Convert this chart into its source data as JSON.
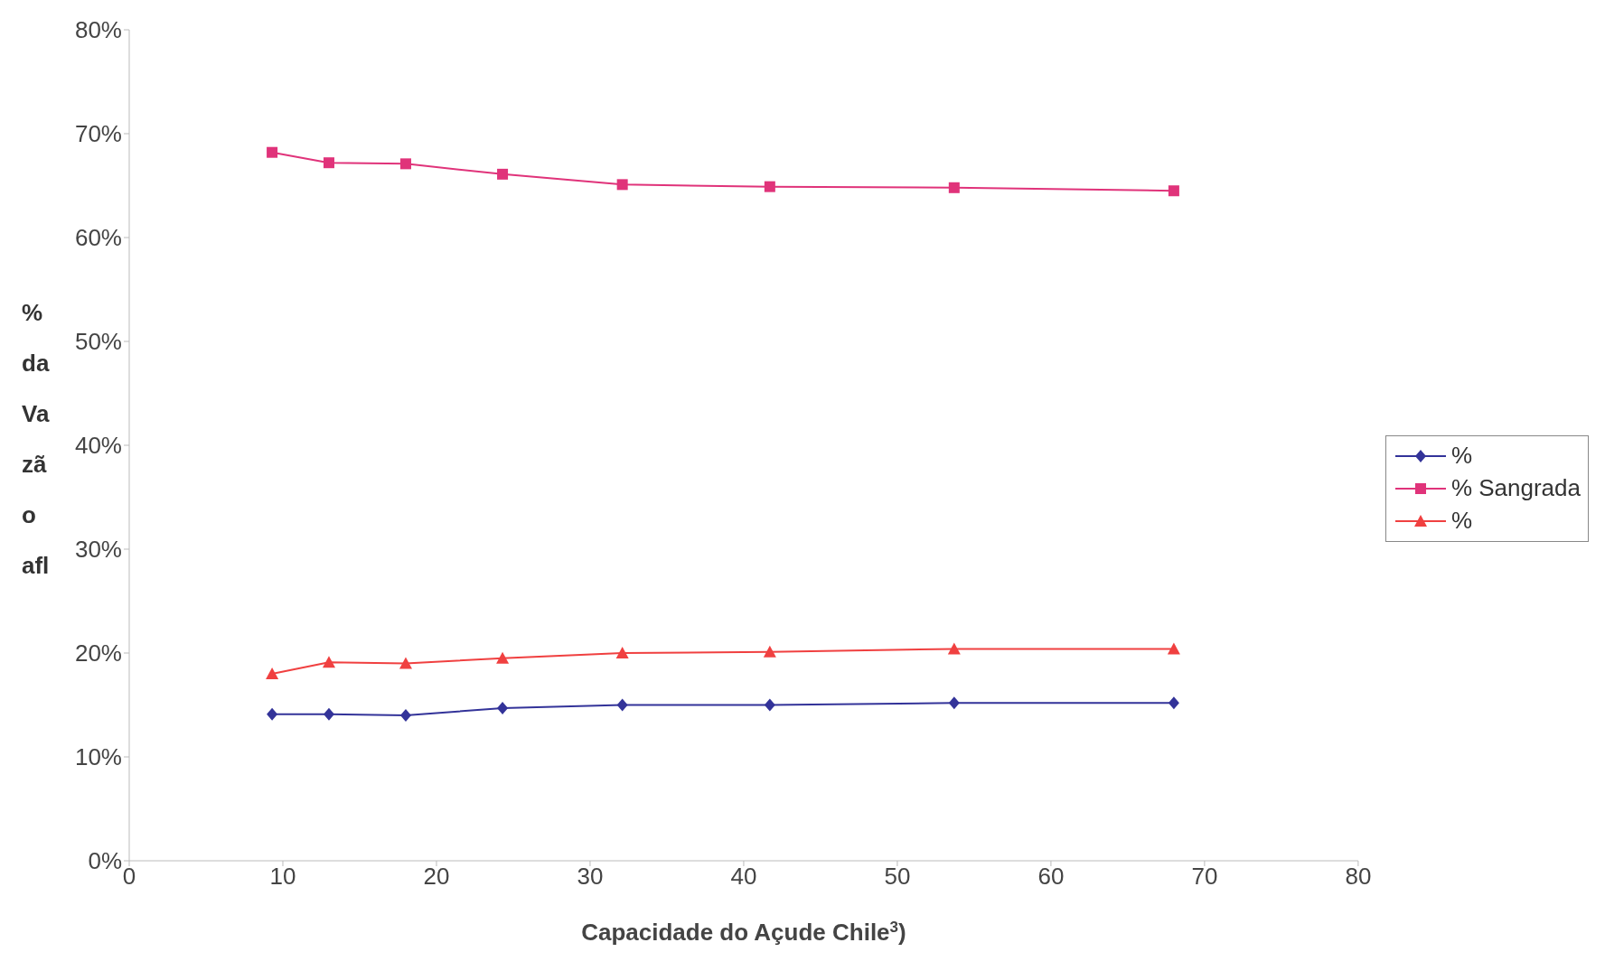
{
  "chart_data": {
    "type": "line",
    "xlabel": "Capacidade do Açude Chile$^{3}$)",
    "ylabel": "% da Va zã o afl",
    "x": [
      9.3,
      13.0,
      18.0,
      24.3,
      32.1,
      41.7,
      53.7,
      68.0
    ],
    "series": [
      {
        "name": "%",
        "color": "#333399",
        "marker": "diamond",
        "values": [
          14.1,
          14.1,
          14.0,
          14.7,
          15.0,
          15.0,
          15.2,
          15.2
        ]
      },
      {
        "name": "% Sangrada",
        "color": "#e0337a",
        "marker": "square",
        "values": [
          68.2,
          67.2,
          67.1,
          66.1,
          65.1,
          64.9,
          64.8,
          64.5
        ]
      },
      {
        "name": "%",
        "color": "#f04040",
        "marker": "triangle",
        "values": [
          18.0,
          19.1,
          19.0,
          19.5,
          20.0,
          20.1,
          20.4,
          20.4
        ]
      }
    ],
    "xlim": [
      0,
      80
    ],
    "xticks": [
      0,
      10,
      20,
      30,
      40,
      50,
      60,
      70,
      80
    ],
    "ylim": [
      0,
      80
    ],
    "yticks": [
      {
        "value": 0,
        "label": "0%"
      },
      {
        "value": 10,
        "label": "10%"
      },
      {
        "value": 20,
        "label": "20%"
      },
      {
        "value": 30,
        "label": "30%"
      },
      {
        "value": 40,
        "label": "40%"
      },
      {
        "value": 50,
        "label": "50%"
      },
      {
        "value": 60,
        "label": "60%"
      },
      {
        "value": 70,
        "label": "70%"
      },
      {
        "value": 80,
        "label": "80%"
      }
    ],
    "grid": false,
    "legend": "right",
    "line_style": "solid"
  }
}
